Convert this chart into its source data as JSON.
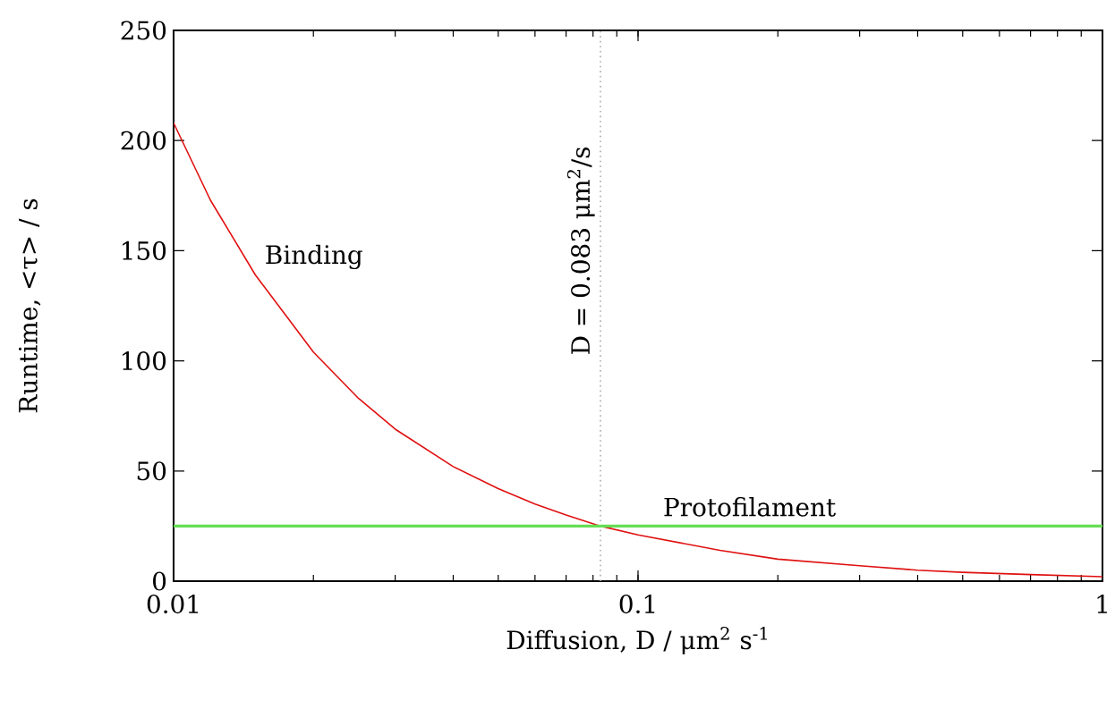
{
  "chart_data": {
    "type": "line",
    "xlabel": "Diffusion, D / μm$^{2}$ s$^{-1}$",
    "ylabel": "Runtime, <τ> / s",
    "log": "x",
    "xlim": [
      0.01,
      1
    ],
    "ylim": [
      0,
      250
    ],
    "xticks": [
      0.01,
      0.1,
      1
    ],
    "yticks": [
      0,
      50,
      100,
      150,
      200,
      250
    ],
    "series": [
      {
        "name": "Binding",
        "color": "#e01010",
        "x": [
          0.01,
          0.012,
          0.015,
          0.02,
          0.025,
          0.03,
          0.04,
          0.05,
          0.06,
          0.07,
          0.083,
          0.1,
          0.15,
          0.2,
          0.3,
          0.4,
          0.5,
          0.7,
          1
        ],
        "values": [
          208,
          173,
          139,
          104,
          83,
          69,
          52,
          42,
          35,
          30,
          25,
          21,
          14,
          10,
          7,
          5,
          4,
          3,
          2
        ]
      },
      {
        "name": "Protofilament",
        "color": "#66dd55",
        "x": [
          0.01,
          1
        ],
        "values": [
          25,
          25
        ]
      }
    ],
    "ref_lines": [
      {
        "axis": "x",
        "value": 0.083,
        "label": "D = 0.083 μm$^{2}$/s",
        "color": "#aaaaaa",
        "line_style": "dotted"
      }
    ],
    "grid": false,
    "marker": "none"
  }
}
